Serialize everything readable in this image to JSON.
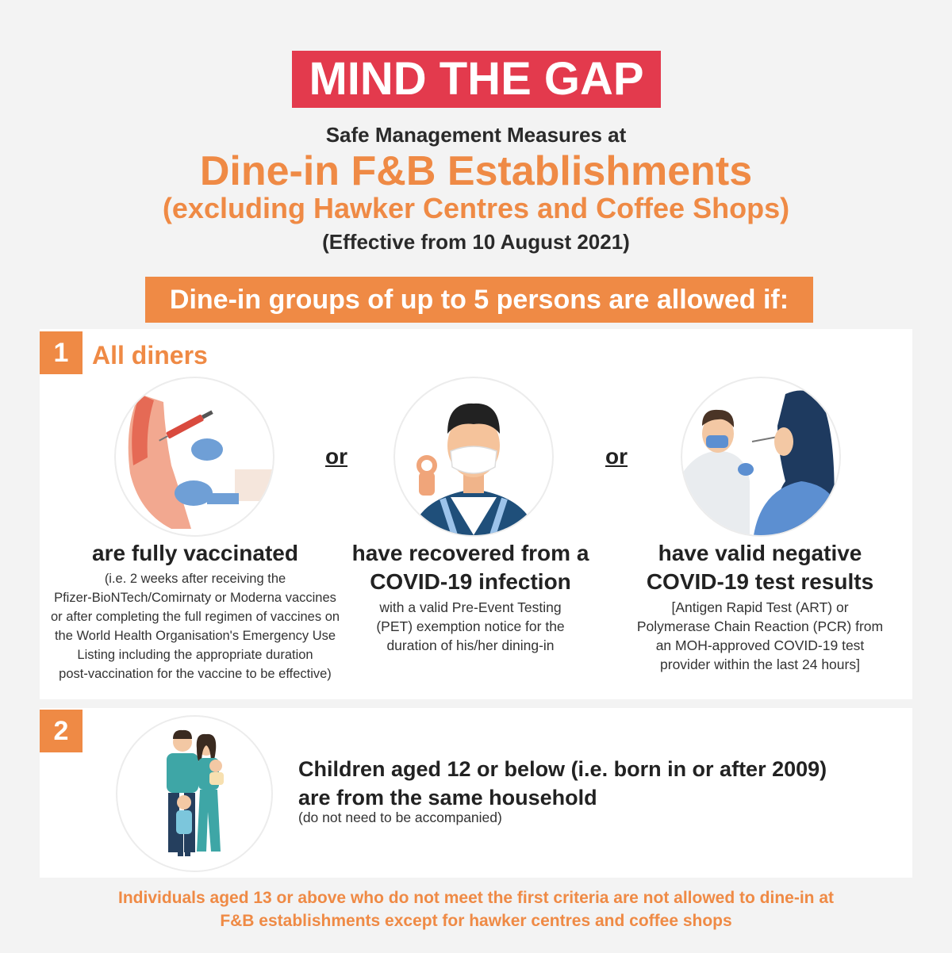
{
  "header": {
    "title": "MIND THE GAP",
    "subtitle": "Safe Management Measures at",
    "heading": "Dine-in F&B Establishments",
    "heading_note": "(excluding Hawker Centres and Coffee Shops)",
    "effective": "(Effective from 10 August 2021)"
  },
  "banner": "Dine-in groups of up to 5 persons are allowed if:",
  "section1": {
    "number": "1",
    "title": "All diners",
    "or_label": "or",
    "options": [
      {
        "heading_lines": [
          "are fully vaccinated"
        ],
        "detail_lines": [
          "(i.e. 2 weeks after receiving the",
          "Pfizer-BioNTech/Comirnaty or Moderna vaccines",
          "or after completing the full regimen of vaccines on",
          "the World Health Organisation's Emergency Use",
          "Listing including the appropriate duration",
          "post-vaccination for the vaccine to be effective)"
        ]
      },
      {
        "heading_lines": [
          "have recovered from a",
          "COVID-19 infection"
        ],
        "detail_lines": [
          "with a valid Pre-Event Testing",
          "(PET) exemption notice for the",
          "duration of his/her dining-in"
        ]
      },
      {
        "heading_lines": [
          "have valid negative",
          "COVID-19 test results"
        ],
        "detail_lines": [
          "[Antigen Rapid Test (ART) or",
          "Polymerase Chain Reaction (PCR) from",
          "an MOH-approved COVID-19 test",
          "provider within the last 24 hours]"
        ]
      }
    ]
  },
  "section2": {
    "number": "2",
    "heading_lines": [
      "Children aged 12 or below (i.e. born in or after 2009)",
      "are from the same household"
    ],
    "detail": "(do not need to be accompanied)"
  },
  "footer_lines": [
    "Individuals aged 13 or above who do not meet the first criteria are not allowed to dine-in at",
    "F&B establishments except for hawker centres and coffee shops"
  ],
  "colors": {
    "accent_red": "#e33a4d",
    "accent_orange": "#ef8a45"
  }
}
